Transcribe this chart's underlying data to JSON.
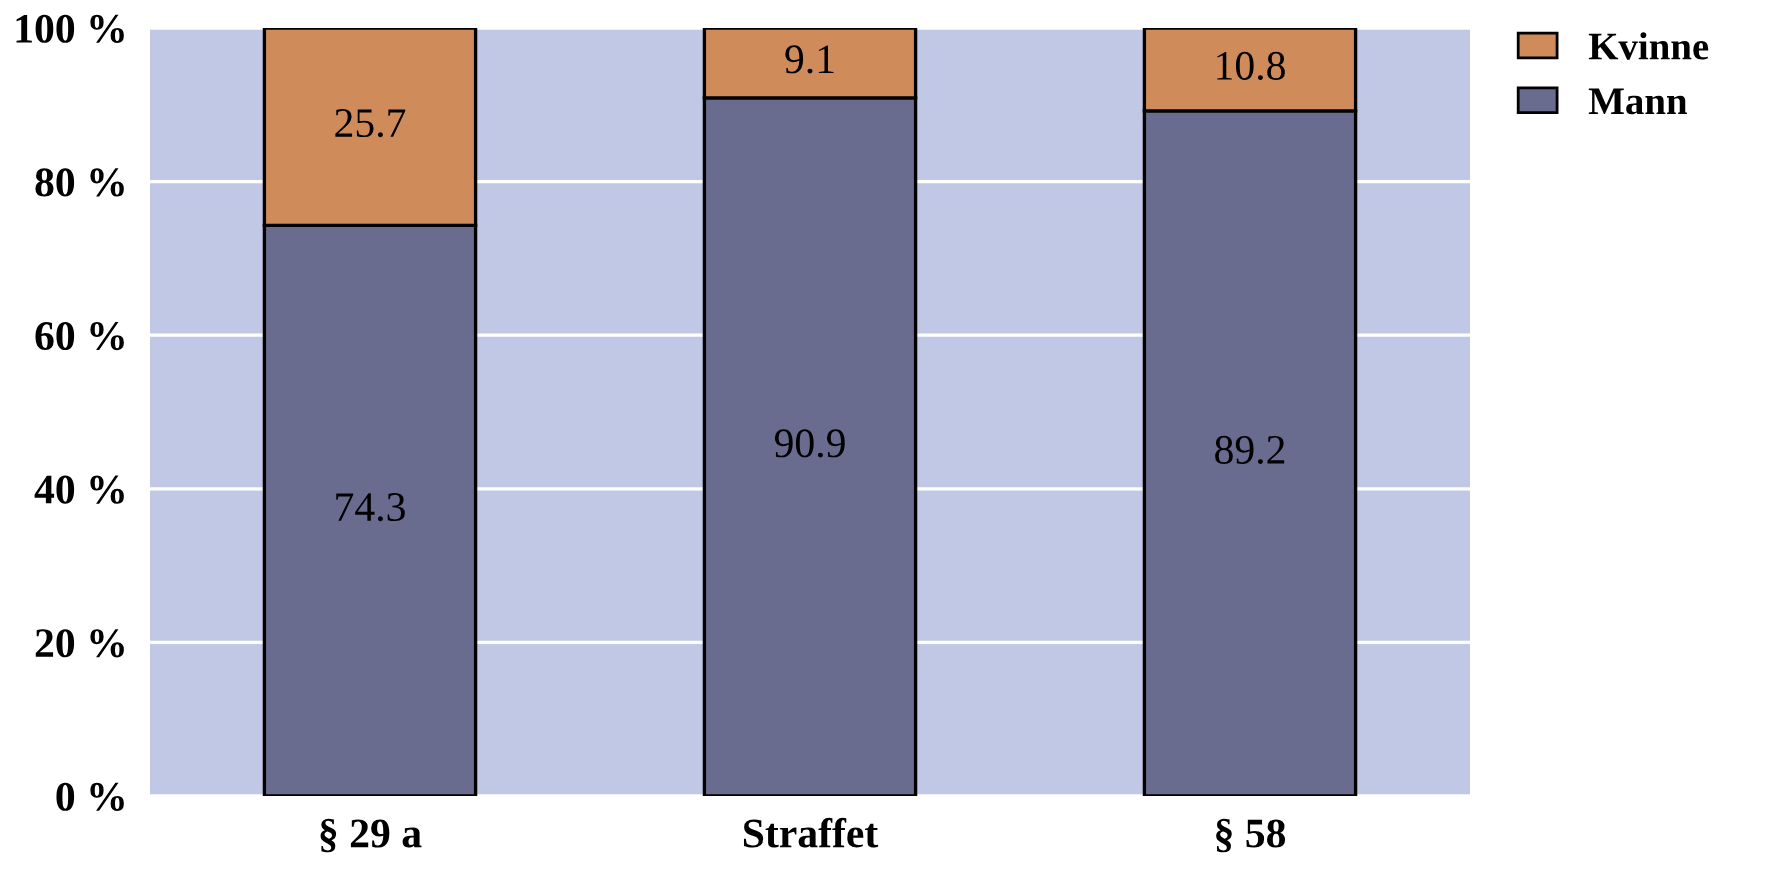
{
  "chart_data": {
    "type": "bar",
    "stacked": true,
    "categories": [
      "§ 29 a",
      "Straffet",
      "§ 58"
    ],
    "series": [
      {
        "name": "Mann",
        "color": "#696b8f",
        "values": [
          74.3,
          90.9,
          89.2
        ]
      },
      {
        "name": "Kvinne",
        "color": "#d08b5a",
        "values": [
          25.7,
          9.1,
          10.8
        ]
      }
    ],
    "ylim": [
      0,
      100
    ],
    "yticks": [
      {
        "value": 0,
        "label": "0 %"
      },
      {
        "value": 20,
        "label": "20 %"
      },
      {
        "value": 40,
        "label": "40 %"
      },
      {
        "value": 60,
        "label": "60 %"
      },
      {
        "value": 80,
        "label": "80 %"
      },
      {
        "value": 100,
        "label": "100 %"
      }
    ],
    "grid": "y",
    "legend": "top right",
    "data_labels": true
  }
}
